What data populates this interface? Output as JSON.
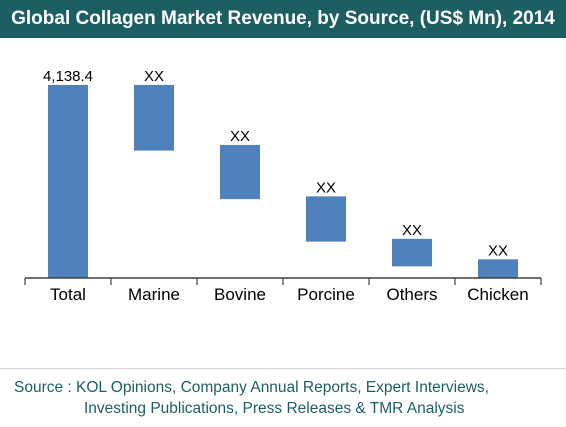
{
  "chart_data": {
    "type": "bar",
    "subtype": "waterfall",
    "title": "Global Collagen Market Revenue, by Source, (US$ Mn), 2014",
    "categories": [
      "Total",
      "Marine",
      "Bovine",
      "Porcine",
      "Others",
      "Chicken"
    ],
    "series": [
      {
        "values": [
          {
            "category": "Total",
            "base": 0,
            "top": 4138.4,
            "label": "4,138.4"
          },
          {
            "category": "Marine",
            "base": 2731,
            "top": 4138.4,
            "label": "XX"
          },
          {
            "category": "Bovine",
            "base": 1690,
            "top": 2851,
            "label": "XX"
          },
          {
            "category": "Porcine",
            "base": 780,
            "top": 1750,
            "label": "XX"
          },
          {
            "category": "Others",
            "base": 250,
            "top": 840,
            "label": "XX"
          },
          {
            "category": "Chicken",
            "base": 0,
            "top": 400,
            "label": "XX"
          }
        ]
      }
    ],
    "ylim": [
      0,
      4630
    ],
    "grid": false,
    "bar_color": "#4f81bd",
    "axis_color": "#404040"
  },
  "footer": {
    "source_line1": "Source : KOL Opinions, Company Annual Reports, Expert Interviews,",
    "source_line2": "Investing Publications, Press Releases & TMR Analysis"
  },
  "colors": {
    "title_bg": "#1d5e63",
    "title_text": "#ffffff",
    "footer_text": "#1d5e63"
  }
}
